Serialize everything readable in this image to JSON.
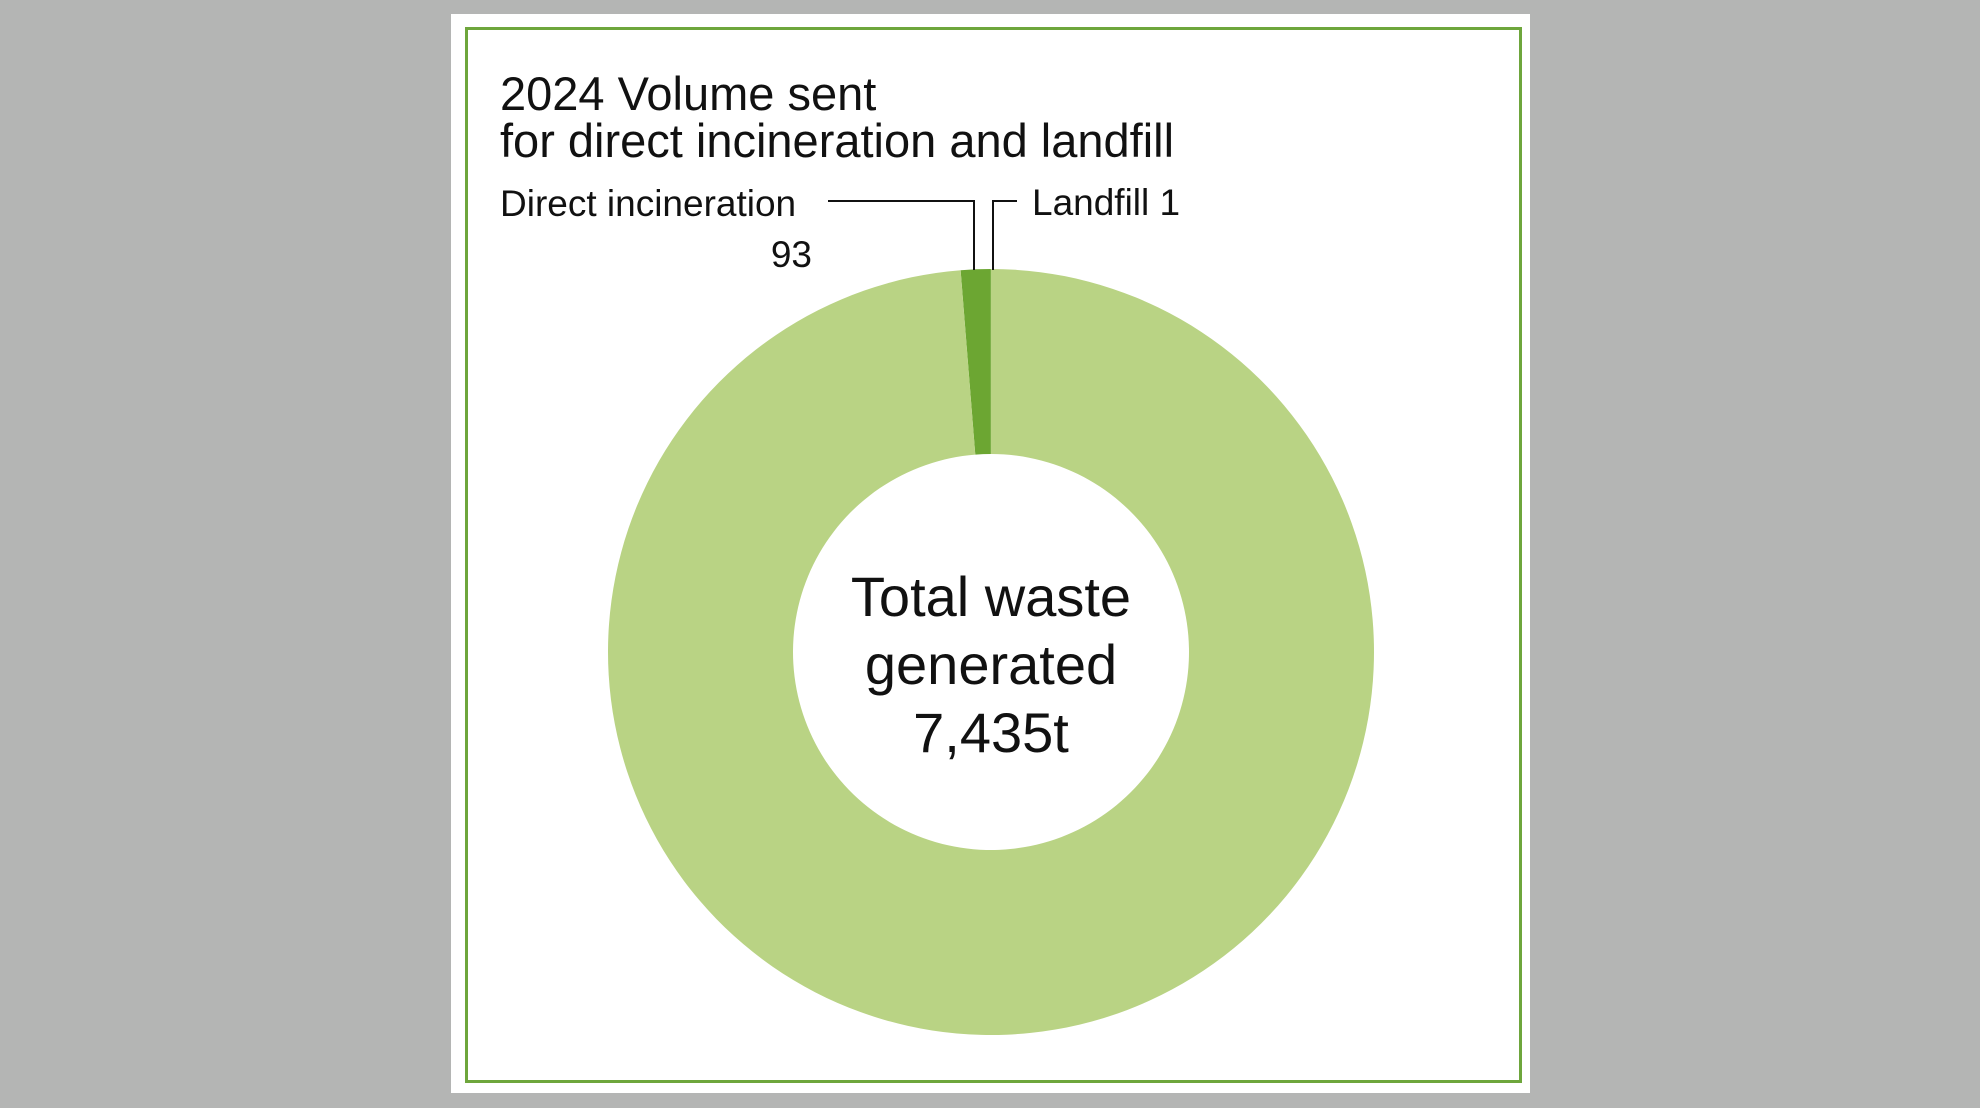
{
  "chart_data": {
    "type": "pie",
    "donut": true,
    "title_line1": "2024 Volume sent",
    "title_line2": "for direct incineration and landfill",
    "center_label": [
      "Total waste",
      "generated",
      "7,435t"
    ],
    "total": 7435,
    "unit": "t",
    "slices": [
      {
        "name": "Landfill",
        "value": 1,
        "color": "#6ca632"
      },
      {
        "name": "Direct incineration",
        "value": 93,
        "color": "#6ca632"
      },
      {
        "value": 7341,
        "color": "#b9d384"
      }
    ],
    "labels": {
      "incineration_name": "Direct incineration",
      "incineration_value": "93",
      "landfill": "Landfill 1"
    },
    "frame_color": "#6ea63c",
    "background_color": "#b4b5b4"
  }
}
